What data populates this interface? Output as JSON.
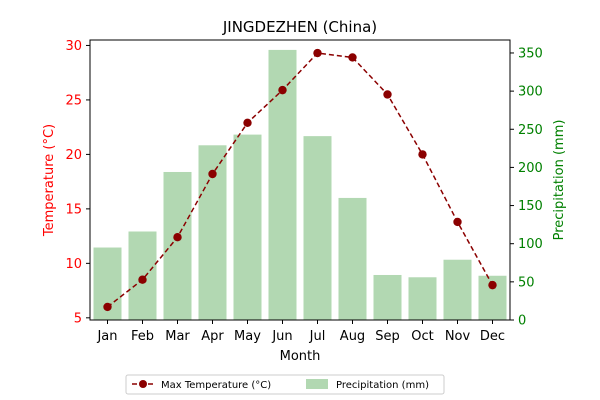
{
  "chart_data": {
    "type": "bar+line",
    "title": "JINGDEZHEN (China)",
    "xlabel": "Month",
    "categories": [
      "Jan",
      "Feb",
      "Mar",
      "Apr",
      "May",
      "Jun",
      "Jul",
      "Aug",
      "Sep",
      "Oct",
      "Nov",
      "Dec"
    ],
    "left_axis": {
      "label": "Temperature (°C)",
      "color": "#ff0000",
      "ylim": [
        4.8,
        30.5
      ],
      "ticks": [
        5,
        10,
        15,
        20,
        25,
        30
      ]
    },
    "right_axis": {
      "label": "Precipitation (mm)",
      "color": "#008000",
      "ylim": [
        0,
        367
      ],
      "ticks": [
        0,
        50,
        100,
        150,
        200,
        250,
        300,
        350
      ]
    },
    "series": [
      {
        "name": "Max Temperature (°C)",
        "type": "line",
        "axis": "left",
        "color": "#8b0000",
        "values": [
          6.0,
          8.5,
          12.4,
          18.2,
          22.9,
          25.9,
          29.3,
          28.9,
          25.5,
          20.0,
          13.8,
          8.0
        ]
      },
      {
        "name": "Precipitation (mm)",
        "type": "bar",
        "axis": "right",
        "color": "#b2d8b2",
        "values": [
          95,
          116,
          194,
          229,
          243,
          354,
          241,
          160,
          59,
          56,
          79,
          58
        ]
      }
    ],
    "grid": false,
    "legend_position": "bottom-center"
  }
}
